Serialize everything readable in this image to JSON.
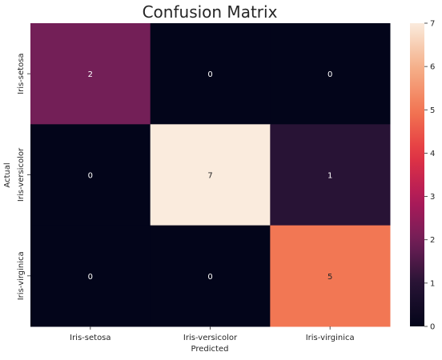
{
  "chart_data": {
    "type": "heatmap",
    "title": "Confusion Matrix",
    "xlabel": "Predicted",
    "ylabel": "Actual",
    "x_categories": [
      "Iris-setosa",
      "Iris-versicolor",
      "Iris-virginica"
    ],
    "y_categories": [
      "Iris-setosa",
      "Iris-versicolor",
      "Iris-virginica"
    ],
    "values": [
      [
        2,
        0,
        0
      ],
      [
        0,
        7,
        1
      ],
      [
        0,
        0,
        5
      ]
    ],
    "colorbar": {
      "min": 0,
      "max": 7,
      "ticks": [
        0,
        1,
        2,
        3,
        4,
        5,
        6,
        7
      ],
      "colormap": "rocket"
    },
    "annotations_color_dark": "#ffffff",
    "annotations_color_light": "#262626"
  }
}
